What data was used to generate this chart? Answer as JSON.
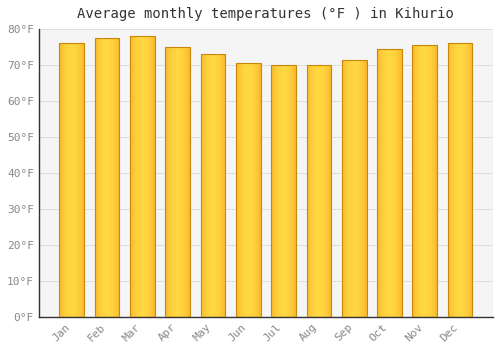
{
  "title": "Average monthly temperatures (°F ) in Kihurio",
  "months": [
    "Jan",
    "Feb",
    "Mar",
    "Apr",
    "May",
    "Jun",
    "Jul",
    "Aug",
    "Sep",
    "Oct",
    "Nov",
    "Dec"
  ],
  "values": [
    76,
    77.5,
    78,
    75,
    73,
    70.5,
    70,
    70,
    71.5,
    74.5,
    75.5,
    76
  ],
  "bar_color_left": "#F5A623",
  "bar_color_center": "#FDD835",
  "bar_color_right": "#F5A623",
  "bar_edge_color": "#C8860A",
  "background_color": "#FFFFFF",
  "plot_bg_color": "#F5F5F5",
  "grid_color": "#DDDDDD",
  "ylim": [
    0,
    80
  ],
  "yticks": [
    0,
    10,
    20,
    30,
    40,
    50,
    60,
    70,
    80
  ],
  "ytick_labels": [
    "0°F",
    "10°F",
    "20°F",
    "30°F",
    "40°F",
    "50°F",
    "60°F",
    "70°F",
    "80°F"
  ],
  "title_fontsize": 10,
  "tick_fontsize": 8,
  "tick_color": "#888888",
  "spine_color": "#333333",
  "bar_width": 0.7
}
